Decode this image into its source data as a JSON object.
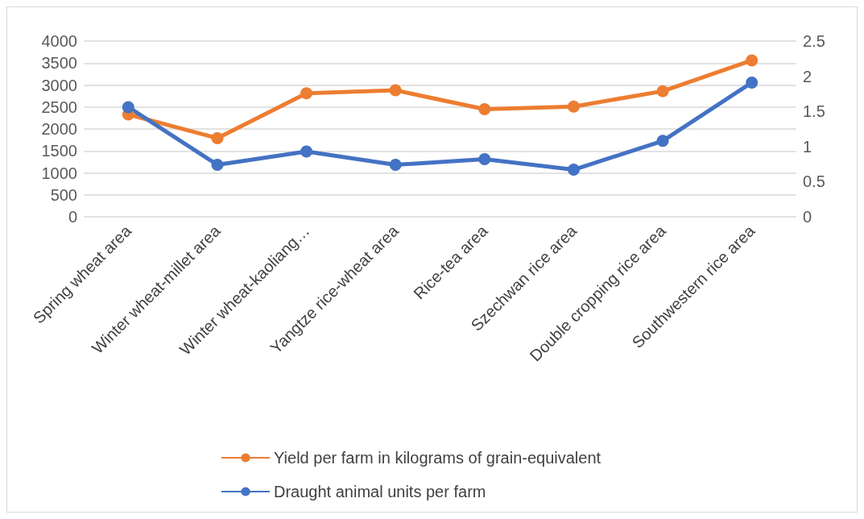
{
  "chart_data": {
    "type": "line",
    "categories": [
      "Spring wheat area",
      "Winter wheat-millet area",
      "Winter wheat-kaoliang…",
      "Yangtze rice-wheat area",
      "Rice-tea area",
      "Szechwan rice area",
      "Double cropping rice area",
      "Southwestern rice area"
    ],
    "series": [
      {
        "name": "Yield per farm in kilograms of grain-equivalent",
        "color": "#ed7d31",
        "values": [
          2330,
          1790,
          2810,
          2880,
          2450,
          2510,
          2860,
          3560
        ]
      },
      {
        "name": "Draught animal units per farm",
        "color": "#4472c4",
        "axis": "y2",
        "values": [
          1.56,
          0.74,
          0.93,
          0.74,
          0.82,
          0.67,
          1.08,
          1.91
        ]
      }
    ],
    "ylim": [
      0,
      4000
    ],
    "yticks": [
      0,
      500,
      1000,
      1500,
      2000,
      2500,
      3000,
      3500,
      4000
    ],
    "y2lim": [
      0,
      2.5
    ],
    "y2ticks": [
      0,
      0.5,
      1,
      1.5,
      2,
      2.5
    ],
    "grid": "y",
    "legend": "bottom",
    "marker": "circle",
    "line_style": "solid"
  }
}
